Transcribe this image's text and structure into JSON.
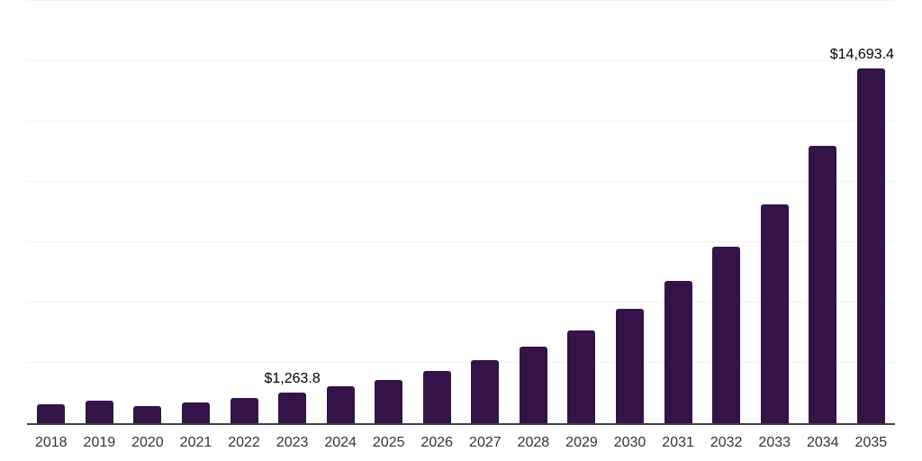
{
  "chart_data": {
    "type": "bar",
    "title": "",
    "xlabel": "",
    "ylabel": "",
    "categories": [
      "2018",
      "2019",
      "2020",
      "2021",
      "2022",
      "2023",
      "2024",
      "2025",
      "2026",
      "2027",
      "2028",
      "2029",
      "2030",
      "2031",
      "2032",
      "2033",
      "2034",
      "2035"
    ],
    "values": [
      800,
      945,
      720,
      850,
      1045,
      1263.8,
      1530,
      1800,
      2170,
      2610,
      3165,
      3835,
      4730,
      5880,
      7300,
      9080,
      11510,
      14693.4
    ],
    "point_labels": [
      null,
      null,
      null,
      null,
      null,
      {
        "text": "$1,263.8",
        "dx": 0
      },
      null,
      null,
      null,
      null,
      null,
      null,
      null,
      null,
      null,
      null,
      null,
      {
        "text": "$14,693.4",
        "dx": -10
      }
    ],
    "ylim": [
      0,
      17500
    ],
    "gridline_interval": 2500,
    "grid": true,
    "legend": false,
    "colors": {
      "bar": "#341348",
      "gridline": "#f2f2f2",
      "axis": "#424242",
      "tick_label": "#333333",
      "data_label": "#000000",
      "background": "#ffffff"
    }
  }
}
